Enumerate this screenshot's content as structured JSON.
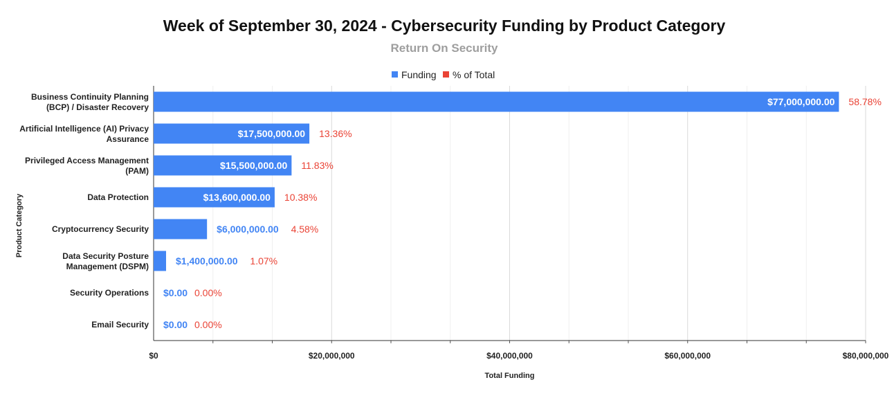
{
  "chart_data": {
    "type": "bar",
    "orientation": "horizontal",
    "title": "Week of September 30, 2024 - Cybersecurity Funding by Product Category",
    "subtitle": "Return On Security",
    "xlabel": "Total Funding",
    "ylabel": "Product Category",
    "xlim": [
      0,
      80000000
    ],
    "xticks": [
      0,
      20000000,
      40000000,
      60000000,
      80000000
    ],
    "xtick_labels": [
      "$0",
      "$20,000,000",
      "$40,000,000",
      "$60,000,000",
      "$80,000,000"
    ],
    "legend_position": "top",
    "legend": [
      {
        "name": "Funding",
        "color": "#4285f4"
      },
      {
        "name": "% of Total",
        "color": "#ea4335"
      }
    ],
    "categories": [
      [
        "Business Continuity Planning",
        "(BCP) / Disaster Recovery"
      ],
      [
        "Artificial Intelligence (AI) Privacy",
        "Assurance"
      ],
      [
        "Privileged Access Management",
        "(PAM)"
      ],
      [
        "Data Protection"
      ],
      [
        "Cryptocurrency Security"
      ],
      [
        "Data Security Posture",
        "Management (DSPM)"
      ],
      [
        "Security Operations"
      ],
      [
        "Email Security"
      ]
    ],
    "series": [
      {
        "name": "Funding",
        "values": [
          77000000,
          17500000,
          15500000,
          13600000,
          6000000,
          1400000,
          0,
          0
        ],
        "labels": [
          "$77,000,000.00",
          "$17,500,000.00",
          "$15,500,000.00",
          "$13,600,000.00",
          "$6,000,000.00",
          "$1,400,000.00",
          "$0.00",
          "$0.00"
        ]
      },
      {
        "name": "% of Total",
        "values": [
          58.78,
          13.36,
          11.83,
          10.38,
          4.58,
          1.07,
          0.0,
          0.0
        ],
        "labels": [
          "58.78%",
          "13.36%",
          "11.83%",
          "10.38%",
          "4.58%",
          "1.07%",
          "0.00%",
          "0.00%"
        ]
      }
    ],
    "colors": {
      "bar": "#4285f4",
      "percent": "#ea4335",
      "grid": "#e0e0e0",
      "axis": "#333333"
    }
  }
}
